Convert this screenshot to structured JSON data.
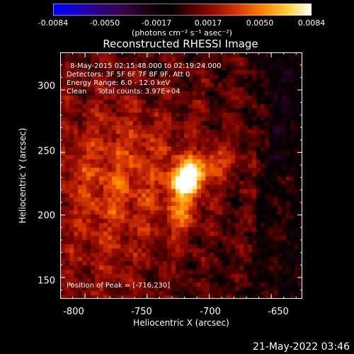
{
  "colorbar": {
    "min": -0.0084,
    "max": 0.0084,
    "ticks": [
      "-0.0084",
      "-0.0050",
      "-0.0017",
      "0.0017",
      "0.0050",
      "0.0084"
    ],
    "unit": "(photons cm⁻² s⁻¹ asec⁻²)",
    "colormap": [
      "#0000ff",
      "#1a00cc",
      "#300080",
      "#3a0045",
      "#1a0010",
      "#000000",
      "#5a0000",
      "#a01000",
      "#e04000",
      "#ff8a00",
      "#ffd040",
      "#ffffff"
    ]
  },
  "chart_data": {
    "type": "heatmap",
    "title": "Reconstructed RHESSI Image",
    "xlabel": "Heliocentric X (arcsec)",
    "ylabel": "Heliocentric Y (arcsec)",
    "xlim": [
      -820,
      -625
    ],
    "ylim": [
      133,
      330
    ],
    "xticks": [
      -800,
      -750,
      -700,
      -650
    ],
    "yticks": [
      150,
      200,
      250,
      300
    ],
    "peak_position": [
      -716,
      230
    ],
    "annotations": {
      "time_range": "8-May-2015 02:15:48.000 to 02:19:24.000",
      "detectors": "Detectors: 3F 5F 6F 7F 8F 9F, Att 0",
      "energy": "Energy Range: 6.0 - 12.0 keV",
      "method": "Clean     Total counts: 3.97E+04",
      "peak": "Position of Peak = [-716,230]"
    }
  },
  "timestamp": "21-May-2022 03:46"
}
